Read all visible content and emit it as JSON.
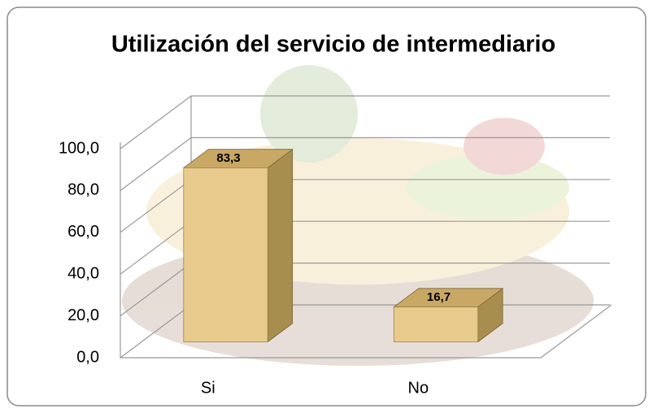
{
  "chart_data": {
    "type": "bar3d",
    "title": "Utilización del servicio de intermediario",
    "categories": [
      "Si",
      "No"
    ],
    "values": [
      83.3,
      16.7
    ],
    "value_labels": [
      "83,3",
      "16,7"
    ],
    "color": "#e8cb8c",
    "ylim": [
      0,
      100
    ],
    "yticks": [
      {
        "value": 0,
        "label": "0,0"
      },
      {
        "value": 20,
        "label": "20,0"
      },
      {
        "value": 40,
        "label": "40,0"
      },
      {
        "value": 60,
        "label": "60,0"
      },
      {
        "value": 80,
        "label": "80,0"
      },
      {
        "value": 100,
        "label": "100,0"
      }
    ],
    "grid": true
  }
}
